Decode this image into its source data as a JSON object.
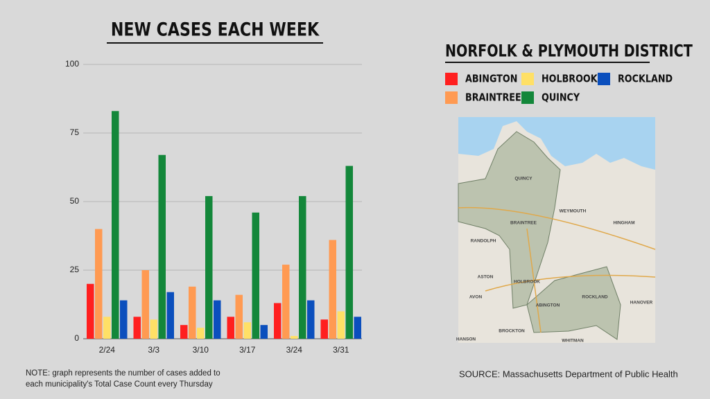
{
  "chart_data": {
    "type": "bar",
    "title": "NEW CASES EACH WEEK",
    "categories": [
      "2/24",
      "3/3",
      "3/10",
      "3/17",
      "3/24",
      "3/31"
    ],
    "series": [
      {
        "name": "ABINGTON",
        "color": "#ff1f1f",
        "values": [
          20,
          8,
          5,
          8,
          13,
          7
        ]
      },
      {
        "name": "BRAINTREE",
        "color": "#ff9a52",
        "values": [
          40,
          25,
          19,
          16,
          27,
          36
        ]
      },
      {
        "name": "HOLBROOK",
        "color": "#ffe066",
        "values": [
          8,
          7,
          4,
          6,
          1,
          10
        ]
      },
      {
        "name": "QUINCY",
        "color": "#13873a",
        "values": [
          83,
          67,
          52,
          46,
          52,
          63
        ]
      },
      {
        "name": "ROCKLAND",
        "color": "#0b4fbd",
        "values": [
          14,
          17,
          14,
          5,
          14,
          8
        ]
      }
    ],
    "ylim": [
      0,
      100
    ],
    "yticks": [
      0,
      25,
      50,
      75,
      100
    ],
    "grid": true,
    "legend_title": "NORFOLK & PLYMOUTH DISTRICT",
    "note": "NOTE: graph represents the number of cases added to each municipality's Total Case Count every Thursday",
    "source": "SOURCE: Massachusetts Department of Public Health"
  },
  "map_labels": [
    "QUINCY",
    "BRAINTREE",
    "WEYMOUTH",
    "RANDOLPH",
    "HINGHAM",
    "HOLBROOK",
    "AVON",
    "ABINGTON",
    "ROCKLAND",
    "HANOVER",
    "BROCKTON",
    "WHITMAN",
    "HANSON",
    "ASTON"
  ]
}
